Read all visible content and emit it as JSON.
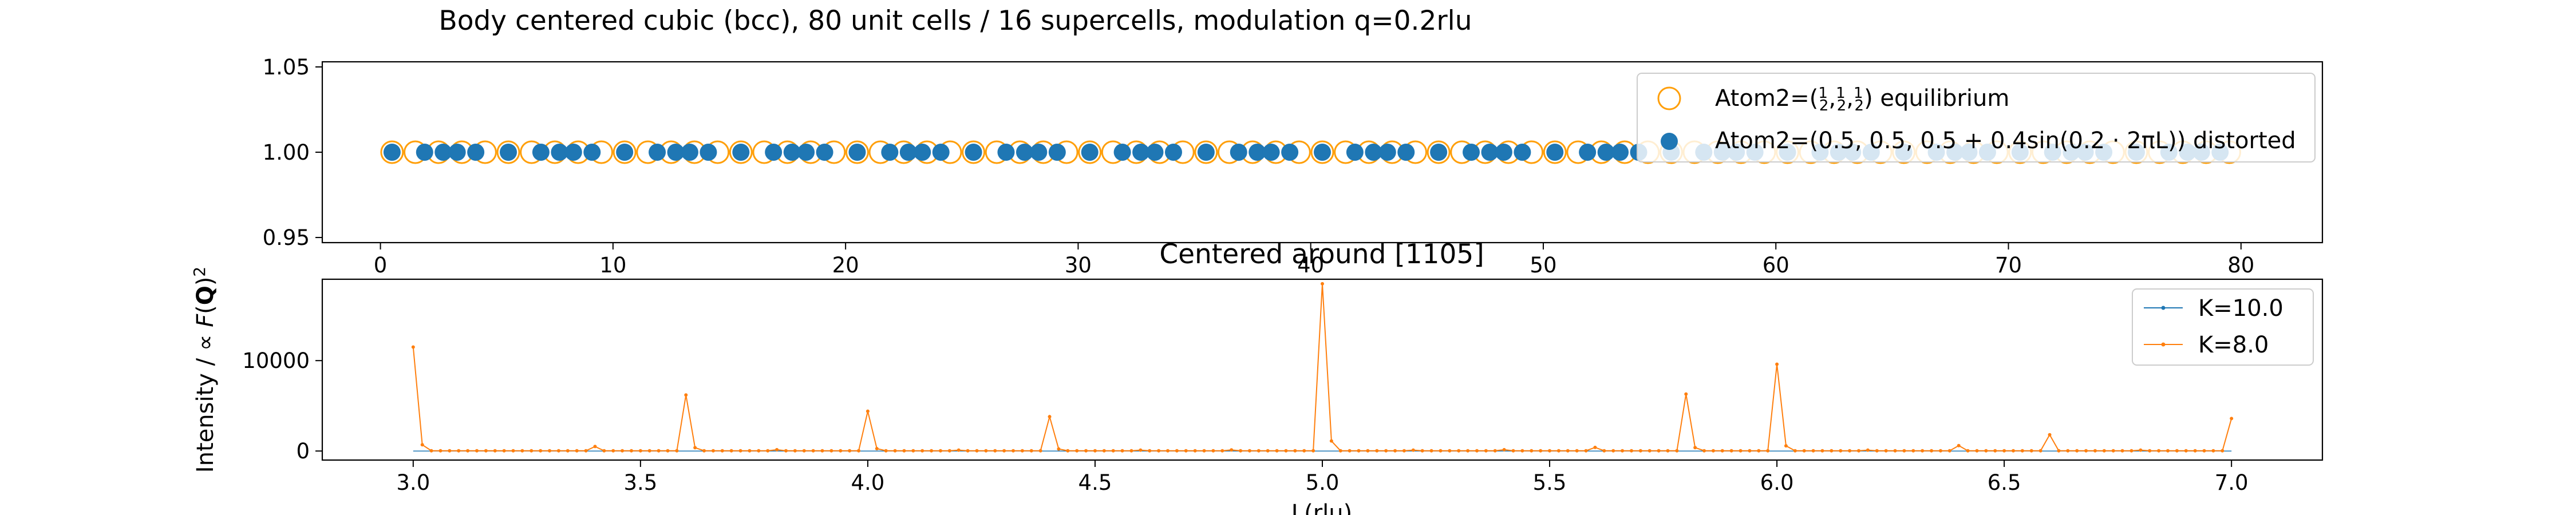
{
  "chart_data": [
    {
      "type": "scatter",
      "title": "Body centered cubic (bcc), 80 unit cells / 16 supercells, modulation q=0.2rlu",
      "xlabel": "",
      "ylabel": "",
      "xlim": [
        -2.5,
        83.5
      ],
      "ylim": [
        0.947,
        1.053
      ],
      "xticks": [
        "0",
        "10",
        "20",
        "30",
        "40",
        "50",
        "60",
        "70",
        "80"
      ],
      "yticks": [
        "0.95",
        "1.00",
        "1.05"
      ],
      "legend_position": "upper right",
      "series": [
        {
          "name": "Atom2=($\\frac{1}{2}$,$\\frac{1}{2}$,$\\frac{1}{2}$) equilibrium",
          "label_text": "Atom2=(",
          "label_tail": ") equilibrium",
          "marker": "hollow-circle",
          "color": "#ff9f0a",
          "x": [
            0.5,
            1.5,
            2.5,
            3.5,
            4.5,
            5.5,
            6.5,
            7.5,
            8.5,
            9.5,
            10.5,
            11.5,
            12.5,
            13.5,
            14.5,
            15.5,
            16.5,
            17.5,
            18.5,
            19.5,
            20.5,
            21.5,
            22.5,
            23.5,
            24.5,
            25.5,
            26.5,
            27.5,
            28.5,
            29.5,
            30.5,
            31.5,
            32.5,
            33.5,
            34.5,
            35.5,
            36.5,
            37.5,
            38.5,
            39.5,
            40.5,
            41.5,
            42.5,
            43.5,
            44.5,
            45.5,
            46.5,
            47.5,
            48.5,
            49.5,
            50.5,
            51.5,
            52.5,
            53.5,
            54.5,
            55.5,
            56.5,
            57.5,
            58.5,
            59.5,
            60.5,
            61.5,
            62.5,
            63.5,
            64.5,
            65.5,
            66.5,
            67.5,
            68.5,
            69.5,
            70.5,
            71.5,
            72.5,
            73.5,
            74.5,
            75.5,
            76.5,
            77.5,
            78.5,
            79.5
          ],
          "y_constant": 1.0
        },
        {
          "name": "Atom2=$(0.5,0.5,0.5+0.4\\sin(0.2\\cdot 2\\pi L))$ distorted",
          "label_text": "Atom2=(0.5, 0.5, 0.5 + 0.4sin(0.2 · 2πL)) distorted",
          "marker": "filled-circle",
          "color": "#1f77b4",
          "x": [
            0.5,
            1.9,
            2.7,
            3.3,
            4.1,
            5.5,
            6.9,
            7.7,
            8.3,
            9.1,
            10.5,
            11.9,
            12.7,
            13.3,
            14.1,
            15.5,
            16.9,
            17.7,
            18.3,
            19.1,
            20.5,
            21.9,
            22.7,
            23.3,
            24.1,
            25.5,
            26.9,
            27.7,
            28.3,
            29.1,
            30.5,
            31.9,
            32.7,
            33.3,
            34.1,
            35.5,
            36.9,
            37.7,
            38.3,
            39.1,
            40.5,
            41.9,
            42.7,
            43.3,
            44.1,
            45.5,
            46.9,
            47.7,
            48.3,
            49.1,
            50.5,
            51.9,
            52.7,
            53.3,
            54.1,
            55.5,
            56.9,
            57.7,
            58.3,
            59.1,
            60.5,
            61.9,
            62.7,
            63.3,
            64.1,
            65.5,
            66.9,
            67.7,
            68.3,
            69.1,
            70.5,
            71.9,
            72.7,
            73.3,
            74.1,
            75.5,
            76.9,
            77.7,
            78.3,
            79.1
          ],
          "y_constant": 1.0
        }
      ]
    },
    {
      "type": "line",
      "title": "Centered around [1105]",
      "xlabel": "L(rlu)",
      "ylabel": "Intensity / $\\propto F(\\mathbf{Q})^2$",
      "xlim": [
        2.8,
        7.2
      ],
      "ylim": [
        -1000,
        19000
      ],
      "xticks": [
        "3.0",
        "3.5",
        "4.0",
        "4.5",
        "5.0",
        "5.5",
        "6.0",
        "6.5",
        "7.0"
      ],
      "yticks": [
        "0",
        "10000"
      ],
      "legend_position": "upper right",
      "baseline_start": 3.0,
      "baseline_end": 7.0,
      "baseline_step": 0.02,
      "baseline_value": 30,
      "series": [
        {
          "name": "K=10.0",
          "color": "#1f77b4",
          "x": [
            3.0,
            7.0
          ],
          "y": [
            0,
            0
          ]
        },
        {
          "name": "K=8.0",
          "color": "#ff7f0e",
          "peaks": [
            {
              "x": 3.0,
              "y": 11500
            },
            {
              "x": 3.4,
              "y": 500
            },
            {
              "x": 3.6,
              "y": 6200
            },
            {
              "x": 3.8,
              "y": 150
            },
            {
              "x": 4.0,
              "y": 4400
            },
            {
              "x": 4.2,
              "y": 100
            },
            {
              "x": 4.4,
              "y": 3800
            },
            {
              "x": 4.6,
              "y": 100
            },
            {
              "x": 4.8,
              "y": 120
            },
            {
              "x": 5.0,
              "y": 18500
            },
            {
              "x": 5.2,
              "y": 100
            },
            {
              "x": 5.4,
              "y": 150
            },
            {
              "x": 5.6,
              "y": 400
            },
            {
              "x": 5.8,
              "y": 6300
            },
            {
              "x": 6.0,
              "y": 9600
            },
            {
              "x": 6.2,
              "y": 100
            },
            {
              "x": 6.4,
              "y": 600
            },
            {
              "x": 6.6,
              "y": 1800
            },
            {
              "x": 6.8,
              "y": 100
            },
            {
              "x": 7.0,
              "y": 3600
            }
          ]
        }
      ]
    }
  ]
}
